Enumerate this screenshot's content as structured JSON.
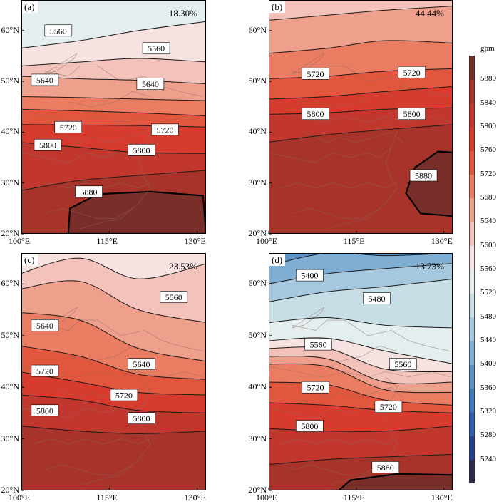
{
  "colors": {
    "levels": [
      5240,
      5280,
      5320,
      5360,
      5400,
      5440,
      5480,
      5520,
      5560,
      5600,
      5640,
      5680,
      5720,
      5760,
      5800,
      5840,
      5880
    ],
    "fills": [
      "#2c2c4c",
      "#26418b",
      "#2f5fa8",
      "#3f79ba",
      "#5b93c6",
      "#7eaed3",
      "#a6c8de",
      "#c8dee6",
      "#e4eeee",
      "#f6e2e1",
      "#f3c3bb",
      "#efa08c",
      "#e97c61",
      "#e3563e",
      "#d63b2e",
      "#c2372d",
      "#a8332a",
      "#7a2e2a"
    ]
  },
  "colorbar": {
    "unit": "gpm",
    "labels": [
      "5880",
      "5840",
      "5800",
      "5760",
      "5720",
      "5680",
      "5640",
      "5600",
      "5560",
      "5520",
      "5480",
      "5440",
      "5400",
      "5360",
      "5320",
      "5280",
      "5240"
    ]
  },
  "axes": {
    "lat_labels": [
      "60°N",
      "50°N",
      "40°N",
      "30°N",
      "20°N"
    ],
    "lon_labels": [
      "100°E",
      "115°E",
      "130°E"
    ]
  },
  "panels": [
    {
      "id": "a",
      "letter": "(a)",
      "percent": "18.30%",
      "lines": [
        {
          "level": 5560,
          "lats": [
            56.5,
            58.0,
            60.0,
            61.8
          ]
        },
        {
          "level": 5600,
          "lats": [
            53.0,
            53.8,
            54.5,
            53.8
          ]
        },
        {
          "level": 5640,
          "lats": [
            51.0,
            50.5,
            50.2,
            49.5
          ]
        },
        {
          "level": 5680,
          "lats": [
            47.0,
            46.8,
            46.5,
            46.2
          ]
        },
        {
          "level": 5720,
          "lats": [
            44.5,
            44.2,
            43.8,
            43.2
          ]
        },
        {
          "level": 5760,
          "lats": [
            41.5,
            41.4,
            41.3,
            41.0
          ]
        },
        {
          "level": 5800,
          "lats": [
            38.0,
            37.0,
            36.0,
            35.8
          ]
        },
        {
          "level": 5840,
          "lats": [
            28.5,
            30.5,
            31.5,
            32.5
          ]
        }
      ],
      "high": [
        [
          108.0,
          20.0
        ],
        [
          108.3,
          25.0
        ],
        [
          113.0,
          27.8
        ],
        [
          122.0,
          28.3
        ],
        [
          131.0,
          27.5
        ],
        [
          131.5,
          20.0
        ]
      ],
      "labels": [
        {
          "text": "5560",
          "lon": 106.3,
          "lat": 60.0
        },
        {
          "text": "5560",
          "lon": 123.0,
          "lat": 56.5
        },
        {
          "text": "5640",
          "lon": 104.0,
          "lat": 50.3
        },
        {
          "text": "5640",
          "lon": 122.0,
          "lat": 49.5
        },
        {
          "text": "5720",
          "lon": 108.0,
          "lat": 41.0
        },
        {
          "text": "5720",
          "lon": 124.5,
          "lat": 40.5
        },
        {
          "text": "5800",
          "lon": 104.5,
          "lat": 37.5
        },
        {
          "text": "5800",
          "lon": 120.5,
          "lat": 36.5
        },
        {
          "text": "5880",
          "lon": 111.5,
          "lat": 28.3
        }
      ]
    },
    {
      "id": "b",
      "letter": "(b)",
      "percent": "44.44%",
      "lines": [
        {
          "level": 5640,
          "lats": [
            62.0,
            63.0,
            64.0,
            64.8
          ]
        },
        {
          "level": 5680,
          "lats": [
            55.5,
            56.5,
            58.0,
            57.5
          ]
        },
        {
          "level": 5720,
          "lats": [
            50.5,
            51.0,
            52.0,
            52.5
          ]
        },
        {
          "level": 5760,
          "lats": [
            46.5,
            47.0,
            48.0,
            49.0
          ]
        },
        {
          "level": 5800,
          "lats": [
            43.5,
            43.8,
            44.5,
            44.8
          ]
        },
        {
          "level": 5840,
          "lats": [
            38.0,
            39.5,
            40.5,
            41.5
          ]
        }
      ],
      "high": [
        [
          131.5,
          23.5
        ],
        [
          126.0,
          24.0
        ],
        [
          123.5,
          28.0
        ],
        [
          125.0,
          33.0
        ],
        [
          129.0,
          36.2
        ],
        [
          131.5,
          36.0
        ]
      ],
      "labels": [
        {
          "text": "5720",
          "lon": 108.0,
          "lat": 51.5
        },
        {
          "text": "5720",
          "lon": 124.5,
          "lat": 51.8
        },
        {
          "text": "5800",
          "lon": 108.0,
          "lat": 43.6
        },
        {
          "text": "5800",
          "lon": 124.5,
          "lat": 43.6
        },
        {
          "text": "5880",
          "lon": 126.5,
          "lat": 31.5
        }
      ]
    },
    {
      "id": "c",
      "letter": "(c)",
      "percent": "23.53%",
      "lines": [
        {
          "level": 5600,
          "lats": [
            62.0,
            65.0,
            61.0,
            64.0
          ]
        },
        {
          "level": 5640,
          "lats": [
            59.0,
            60.5,
            55.0,
            52.5
          ]
        },
        {
          "level": 5680,
          "lats": [
            54.5,
            53.0,
            47.5,
            45.0
          ]
        },
        {
          "level": 5720,
          "lats": [
            48.0,
            46.0,
            42.5,
            41.5
          ]
        },
        {
          "level": 5760,
          "lats": [
            43.0,
            41.0,
            39.0,
            38.5
          ]
        },
        {
          "level": 5800,
          "lats": [
            38.5,
            37.5,
            35.5,
            35.0
          ]
        },
        {
          "level": 5840,
          "lats": [
            32.5,
            31.5,
            31.0,
            31.5
          ]
        }
      ],
      "high": [],
      "labels": [
        {
          "text": "5560",
          "lon": 126.0,
          "lat": 57.5
        },
        {
          "text": "5640",
          "lon": 104.0,
          "lat": 52.0
        },
        {
          "text": "5640",
          "lon": 120.5,
          "lat": 44.5
        },
        {
          "text": "5720",
          "lon": 104.0,
          "lat": 43.2
        },
        {
          "text": "5720",
          "lon": 117.5,
          "lat": 38.5
        },
        {
          "text": "5800",
          "lon": 104.0,
          "lat": 35.5
        },
        {
          "text": "5800",
          "lon": 120.5,
          "lat": 34.0
        }
      ]
    },
    {
      "id": "d",
      "letter": "(d)",
      "percent": "13.73%",
      "lines": [
        {
          "level": 5400,
          "lats": [
            63.5,
            66.0,
            65.5,
            66.0
          ]
        },
        {
          "level": 5440,
          "lats": [
            60.0,
            62.0,
            63.0,
            64.0
          ]
        },
        {
          "level": 5480,
          "lats": [
            56.5,
            58.5,
            59.5,
            61.0
          ]
        },
        {
          "level": 5520,
          "lats": [
            52.5,
            53.5,
            52.0,
            51.5
          ]
        },
        {
          "level": 5560,
          "lats": [
            49.0,
            49.5,
            47.0,
            44.5
          ]
        },
        {
          "level": 5600,
          "lats": [
            47.5,
            47.5,
            43.5,
            43.0
          ]
        },
        {
          "level": 5640,
          "lats": [
            46.0,
            45.5,
            41.0,
            41.0
          ]
        },
        {
          "level": 5680,
          "lats": [
            44.5,
            44.0,
            39.5,
            39.0
          ]
        },
        {
          "level": 5720,
          "lats": [
            41.0,
            40.5,
            37.5,
            36.5
          ]
        },
        {
          "level": 5760,
          "lats": [
            37.0,
            36.5,
            35.5,
            35.0
          ]
        },
        {
          "level": 5800,
          "lats": [
            32.0,
            31.5,
            31.5,
            32.5
          ]
        },
        {
          "level": 5840,
          "lats": [
            25.0,
            26.0,
            26.5,
            27.0
          ]
        }
      ],
      "high": [
        [
          112.0,
          20.0
        ],
        [
          114.0,
          22.0
        ],
        [
          122.0,
          23.2
        ],
        [
          131.5,
          23.0
        ],
        [
          131.5,
          20.0
        ]
      ],
      "labels": [
        {
          "text": "5400",
          "lon": 107.0,
          "lat": 61.7
        },
        {
          "text": "5480",
          "lon": 118.5,
          "lat": 57.2
        },
        {
          "text": "5560",
          "lon": 108.5,
          "lat": 48.3
        },
        {
          "text": "5560",
          "lon": 123.0,
          "lat": 44.5
        },
        {
          "text": "5720",
          "lon": 108.0,
          "lat": 40.0
        },
        {
          "text": "5720",
          "lon": 120.5,
          "lat": 36.2
        },
        {
          "text": "5800",
          "lon": 107.0,
          "lat": 32.5
        },
        {
          "text": "5880",
          "lon": 120.0,
          "lat": 24.5
        }
      ]
    }
  ]
}
